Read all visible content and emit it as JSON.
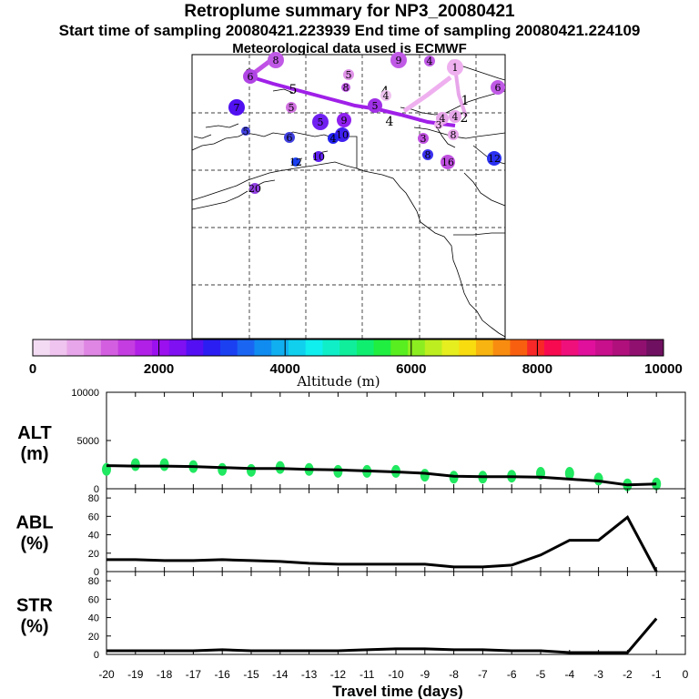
{
  "header": {
    "title": "Retroplume summary for NP3_20080421",
    "sampling_line": "Start time of sampling 20080421.223939     End time of sampling 20080421.224109",
    "met_line": "Meteorological data used is ECMWF"
  },
  "colorbar": {
    "label": "Altitude (m)",
    "ticks": [
      "0",
      "2000",
      "4000",
      "6000",
      "8000",
      "10000"
    ],
    "min": 0,
    "max": 10000,
    "colors": [
      "#f3dcf3",
      "#efc4ef",
      "#e8a6ea",
      "#df86e4",
      "#d35fe0",
      "#c43de0",
      "#b020e6",
      "#9b10ee",
      "#7f10f2",
      "#5410f2",
      "#2b1ef2",
      "#1a40f2",
      "#1a66f2",
      "#108cf0",
      "#10b0f0",
      "#10d0ee",
      "#10eeee",
      "#10eec8",
      "#10ee9c",
      "#10ee70",
      "#20ee40",
      "#58ee20",
      "#8cee20",
      "#bcee20",
      "#e6ee20",
      "#f8dc10",
      "#f8b410",
      "#f88c10",
      "#f86010",
      "#f82828",
      "#f80a50",
      "#f0107c",
      "#e0109c",
      "#c8108c",
      "#b0107c",
      "#901070",
      "#701060"
    ]
  },
  "map": {
    "markers": [
      {
        "n": "6",
        "c": "#b044e4"
      },
      {
        "n": "8",
        "c": "#c05ae6"
      },
      {
        "n": "9",
        "c": "#c05ae6"
      },
      {
        "n": "4",
        "c": "#c05ae6"
      },
      {
        "n": "1",
        "c": "#efb0ef"
      },
      {
        "n": "5",
        "c": "#e092e8"
      },
      {
        "n": "8",
        "c": "#c05ae6"
      },
      {
        "n": "4",
        "c": "#efc4ef"
      },
      {
        "n": "6",
        "c": "#c05ae6"
      },
      {
        "n": "5",
        "c": "#a030e6"
      },
      {
        "n": "5",
        "c": "#d070e0"
      },
      {
        "n": "7",
        "c": "#5010f0"
      },
      {
        "n": "9",
        "c": "#9020f0"
      },
      {
        "n": "5",
        "c": "#7020f0"
      },
      {
        "n": "10",
        "c": "#4020f0"
      },
      {
        "n": "4",
        "c": "#2020f0"
      },
      {
        "n": "4",
        "c": "#e8a6ea"
      },
      {
        "n": "4",
        "c": "#e8a6ea"
      },
      {
        "n": "3",
        "c": "#c050e0"
      },
      {
        "n": "8",
        "c": "#e8a6ea"
      },
      {
        "n": "8",
        "c": "#3a30f0"
      },
      {
        "n": "16",
        "c": "#c050e0"
      },
      {
        "n": "12",
        "c": "#2a30f0"
      },
      {
        "n": "6",
        "c": "#4040e0"
      },
      {
        "n": "10",
        "c": "#6020f0"
      },
      {
        "n": "12",
        "c": "#1a40f2"
      },
      {
        "n": "20",
        "c": "#9040e0"
      },
      {
        "n": "5",
        "c": "#4040e0"
      },
      {
        "n": "3",
        "c": "#efb0ef"
      }
    ],
    "traj_labels": [
      "6",
      "5",
      "4",
      "4",
      "1",
      "1",
      "2"
    ]
  },
  "chart_data": [
    {
      "type": "line",
      "panel": "ALT",
      "ylabel": "ALT\n(m)",
      "ylabel_line1": "ALT",
      "ylabel_line2": "(m)",
      "ylim": [
        0,
        10000
      ],
      "yticks": [
        "10000",
        "5000",
        "0"
      ],
      "x": [
        -20,
        -19,
        -18,
        -17,
        -16,
        -15,
        -14,
        -13,
        -12,
        -11,
        -10,
        -9,
        -8,
        -7,
        -6,
        -5,
        -4,
        -3,
        -2,
        -1
      ],
      "values": [
        2400,
        2350,
        2350,
        2300,
        2200,
        2100,
        2100,
        2000,
        1950,
        1850,
        1750,
        1600,
        1300,
        1250,
        1250,
        1200,
        1000,
        800,
        400,
        500
      ],
      "points": [
        2000,
        2500,
        2500,
        2300,
        2000,
        1900,
        2200,
        2000,
        1800,
        1800,
        1800,
        1400,
        1200,
        1200,
        1300,
        1600,
        1600,
        1000,
        400,
        500
      ]
    },
    {
      "type": "line",
      "panel": "ABL",
      "ylabel_line1": "ABL",
      "ylabel_line2": "(%)",
      "ylim": [
        0,
        90
      ],
      "yticks": [
        "80",
        "60",
        "40",
        "20",
        "0"
      ],
      "x": [
        -20,
        -19,
        -18,
        -17,
        -16,
        -15,
        -14,
        -13,
        -12,
        -11,
        -10,
        -9,
        -8,
        -7,
        -6,
        -5,
        -4,
        -3,
        -2,
        -1
      ],
      "values": [
        13,
        13,
        12,
        12,
        13,
        12,
        11,
        9,
        8,
        8,
        8,
        8,
        5,
        5,
        7,
        18,
        34,
        34,
        59,
        0
      ]
    },
    {
      "type": "line",
      "panel": "STR",
      "ylabel_line1": "STR",
      "ylabel_line2": "(%)",
      "ylim": [
        0,
        90
      ],
      "yticks": [
        "80",
        "60",
        "40",
        "20",
        "0"
      ],
      "x": [
        -20,
        -19,
        -18,
        -17,
        -16,
        -15,
        -14,
        -13,
        -12,
        -11,
        -10,
        -9,
        -8,
        -7,
        -6,
        -5,
        -4,
        -3,
        -2,
        -1
      ],
      "values": [
        4,
        4,
        4,
        4,
        5,
        4,
        4,
        4,
        4,
        5,
        6,
        6,
        5,
        5,
        4,
        4,
        2,
        2,
        2,
        39
      ]
    }
  ],
  "xaxis": {
    "label": "Travel time (days)",
    "ticks": [
      "-20",
      "-19",
      "-18",
      "-17",
      "-16",
      "-15",
      "-14",
      "-13",
      "-12",
      "-11",
      "-10",
      "-9",
      "-8",
      "-7",
      "-6",
      "-5",
      "-4",
      "-3",
      "-2",
      "-1",
      "0"
    ]
  }
}
